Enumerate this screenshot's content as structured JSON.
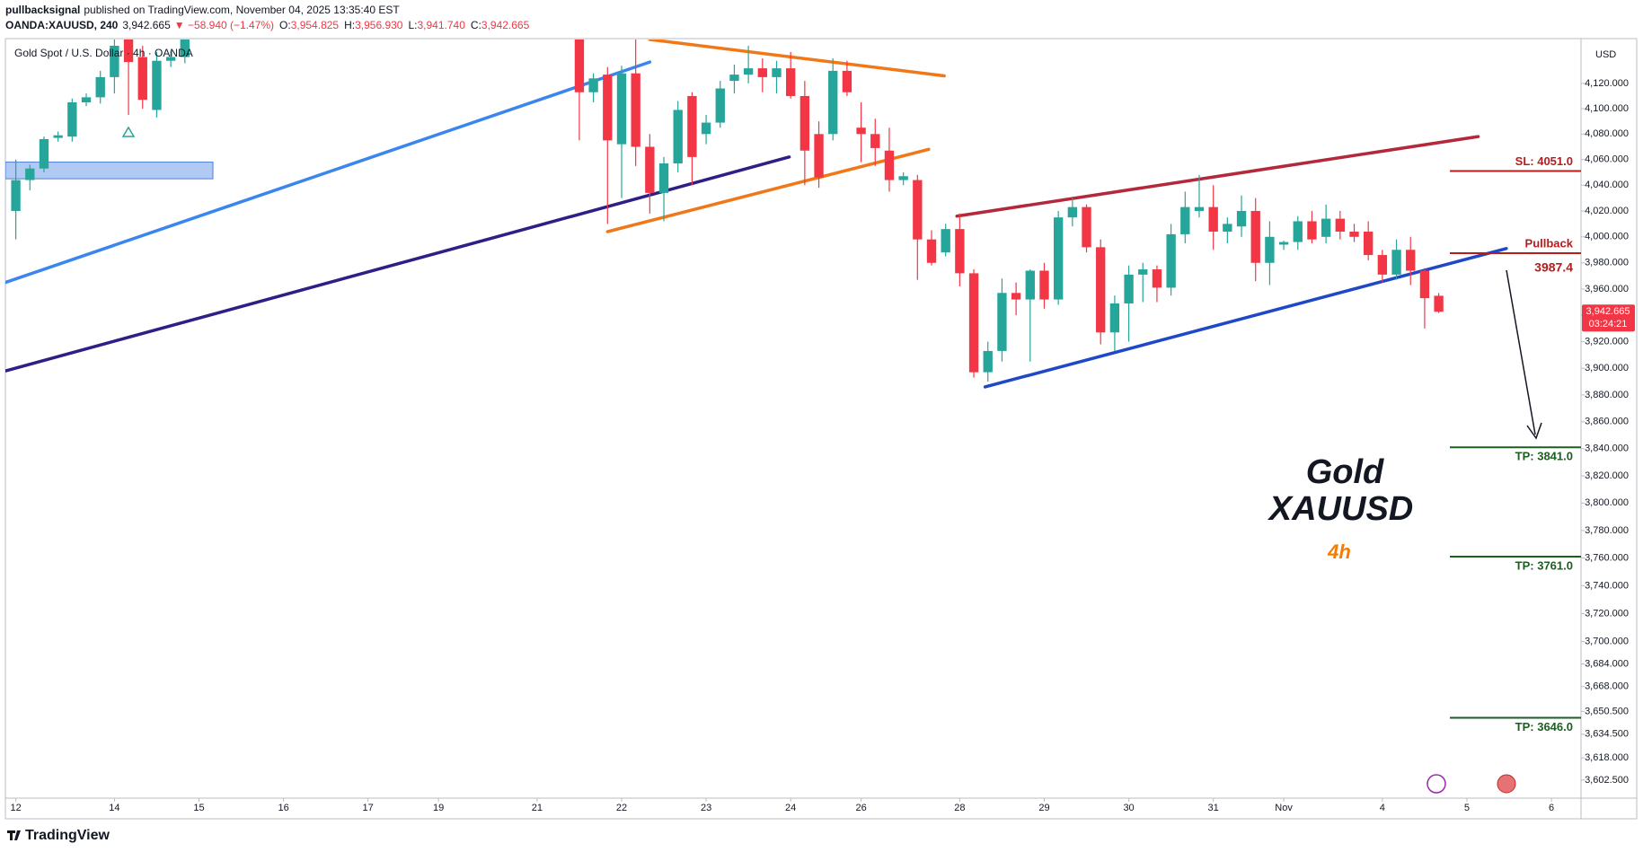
{
  "header": {
    "author": "pullbacksignal",
    "published": "published on TradingView.com, November 04, 2025 13:35:40 EST",
    "symbol": "OANDA:XAUUSD, 240",
    "price": "3,942.665",
    "change": "▼ −58.940 (−1.47%)",
    "ohlc": [
      {
        "key": "O:",
        "value": "3,954.825"
      },
      {
        "key": "H:",
        "value": "3,956.930"
      },
      {
        "key": "L:",
        "value": "3,941.740"
      },
      {
        "key": "C:",
        "value": "3,942.665"
      }
    ]
  },
  "chart_data": {
    "type": "candlestick",
    "legend": "Gold Spot / U.S. Dollar · 4h · OANDA",
    "currency": "USD",
    "log_scale": true,
    "grid": false,
    "up_color": "#26a69a",
    "down_color": "#f23645",
    "x": [
      0,
      1,
      2,
      3,
      4,
      5,
      6,
      7,
      8,
      9,
      10,
      11,
      12,
      40,
      41,
      42,
      43,
      44,
      45,
      46,
      47,
      48,
      49,
      50,
      51,
      52,
      53,
      54,
      55,
      56,
      57,
      58,
      59,
      60,
      61,
      62,
      63,
      64,
      65,
      66,
      67,
      68,
      69,
      70,
      71,
      72,
      73,
      74,
      75,
      76,
      77,
      78,
      79,
      80,
      81,
      82,
      83,
      84,
      85,
      86,
      87,
      88,
      89,
      90,
      91,
      92,
      93,
      94,
      95,
      96,
      97,
      98,
      99,
      100,
      101
    ],
    "open": [
      4020,
      4044,
      4053,
      4077,
      4078,
      4105,
      4109,
      4125,
      4170,
      4141,
      4099,
      4138,
      4141,
      4170,
      4113,
      4127,
      4072,
      4128,
      4070,
      4034,
      4057,
      4110,
      4080,
      4089,
      4122,
      4127,
      4132,
      4125,
      4132,
      4110,
      4080,
      4080,
      4130,
      4085,
      4080,
      4067,
      4044,
      4044,
      3998,
      3988,
      4006,
      3972,
      3897,
      3913,
      3957,
      3952,
      3974,
      3952,
      4015,
      4023,
      3992,
      3927,
      3949,
      3971,
      3975,
      3961,
      4002,
      4020,
      4023,
      4004,
      4008,
      4020,
      3980,
      3994,
      3996,
      4012,
      4000,
      4014,
      4004,
      4004,
      3986,
      3971,
      3990,
      3974,
      3954.825
    ],
    "high": [
      4060,
      4056,
      4078,
      4082,
      4108,
      4112,
      4130,
      4160,
      4180,
      4150,
      4145,
      4146,
      4165,
      4180,
      4128,
      4133,
      4134,
      4160,
      4080,
      4062,
      4106,
      4113,
      4095,
      4122,
      4135,
      4150,
      4140,
      4138,
      4145,
      4122,
      4090,
      4140,
      4138,
      4105,
      4092,
      4085,
      4050,
      4048,
      4005,
      4010,
      4018,
      3975,
      3920,
      3968,
      3965,
      3975,
      3980,
      4020,
      4030,
      4025,
      3998,
      3955,
      3978,
      3980,
      3978,
      4010,
      4035,
      4048,
      4040,
      4015,
      4032,
      4030,
      4012,
      3997,
      4016,
      4020,
      4025,
      4020,
      4010,
      4012,
      3990,
      3998,
      4000,
      3976,
      3956.93
    ],
    "low": [
      3998,
      4036,
      4050,
      4074,
      4074,
      4102,
      4104,
      4112,
      4095,
      4100,
      4093,
      4133,
      4136,
      4075,
      4105,
      4010,
      4030,
      4055,
      4018,
      4012,
      4050,
      4040,
      4072,
      4085,
      4112,
      4120,
      4113,
      4112,
      4108,
      4040,
      4038,
      4075,
      4110,
      4058,
      4055,
      4035,
      4040,
      3967,
      3978,
      3985,
      3962,
      3893,
      3890,
      3905,
      3940,
      3905,
      3945,
      3948,
      4008,
      3988,
      3918,
      3913,
      3920,
      3950,
      3950,
      3955,
      3995,
      4015,
      3990,
      3995,
      4000,
      3966,
      3963,
      3990,
      3990,
      3995,
      3995,
      3998,
      3996,
      3982,
      3965,
      3967,
      3963,
      3930,
      3941.74
    ],
    "close": [
      4044,
      4053,
      4076,
      4079,
      4105,
      4109,
      4125,
      4150,
      4137,
      4107,
      4138,
      4141,
      4158,
      4113,
      4124,
      4075,
      4128,
      4070,
      4034,
      4057,
      4099,
      4062,
      4089,
      4116,
      4127,
      4132,
      4125,
      4132,
      4110,
      4067,
      4046,
      4130,
      4113,
      4080,
      4069,
      4044,
      4047,
      3998,
      3980,
      4006,
      3972,
      3897,
      3913,
      3957,
      3952,
      3974,
      3952,
      4015,
      4023,
      3992,
      3927,
      3949,
      3971,
      3975,
      3961,
      4002,
      4023,
      4023,
      4004,
      4010,
      4020,
      3980,
      4000,
      3996,
      4012,
      3998,
      4014,
      4004,
      4000,
      3986,
      3971,
      3990,
      3974,
      3953,
      3942.665
    ],
    "last_label": "3,942.665",
    "countdown": "03:24:21",
    "xlim": [
      -0.74,
      111.1
    ],
    "xticks": [
      {
        "value": 0,
        "label": "12"
      },
      {
        "value": 7,
        "label": "14"
      },
      {
        "value": 13,
        "label": "15"
      },
      {
        "value": 19,
        "label": "16"
      },
      {
        "value": 25,
        "label": "17"
      },
      {
        "value": 30,
        "label": "19"
      },
      {
        "value": 37,
        "label": "21"
      },
      {
        "value": 43,
        "label": "22"
      },
      {
        "value": 49,
        "label": "23"
      },
      {
        "value": 55,
        "label": "24"
      },
      {
        "value": 60,
        "label": "26"
      },
      {
        "value": 67,
        "label": "28"
      },
      {
        "value": 73,
        "label": "29"
      },
      {
        "value": 79,
        "label": "30"
      },
      {
        "value": 85,
        "label": "31"
      },
      {
        "value": 90,
        "label": "Nov"
      },
      {
        "value": 97,
        "label": "4"
      },
      {
        "value": 103,
        "label": "5"
      },
      {
        "value": 109,
        "label": "6"
      }
    ],
    "ylim": [
      3590,
      4155
    ],
    "yticks": [
      {
        "value": 4120,
        "label": "4,120.000"
      },
      {
        "value": 4100,
        "label": "4,100.000"
      },
      {
        "value": 4080,
        "label": "4,080.000"
      },
      {
        "value": 4060,
        "label": "4,060.000"
      },
      {
        "value": 4040,
        "label": "4,040.000"
      },
      {
        "value": 4020,
        "label": "4,020.000"
      },
      {
        "value": 4000,
        "label": "4,000.000"
      },
      {
        "value": 3980,
        "label": "3,980.000"
      },
      {
        "value": 3960,
        "label": "3,960.000"
      },
      {
        "value": 3940,
        "label": "3,940.000"
      },
      {
        "value": 3920,
        "label": "3,920.000"
      },
      {
        "value": 3900,
        "label": "3,900.000"
      },
      {
        "value": 3880,
        "label": "3,880.000"
      },
      {
        "value": 3860,
        "label": "3,860.000"
      },
      {
        "value": 3840,
        "label": "3,840.000"
      },
      {
        "value": 3820,
        "label": "3,820.000"
      },
      {
        "value": 3800,
        "label": "3,800.000"
      },
      {
        "value": 3780,
        "label": "3,780.000"
      },
      {
        "value": 3760,
        "label": "3,760.000"
      },
      {
        "value": 3740,
        "label": "3,740.000"
      },
      {
        "value": 3720,
        "label": "3,720.000"
      },
      {
        "value": 3700,
        "label": "3,700.000"
      },
      {
        "value": 3684,
        "label": "3,684.000"
      },
      {
        "value": 3668,
        "label": "3,668.000"
      },
      {
        "value": 3650.5,
        "label": "3,650.500"
      },
      {
        "value": 3634.5,
        "label": "3,634.500"
      },
      {
        "value": 3618,
        "label": "3,618.000"
      },
      {
        "value": 3602.5,
        "label": "3,602.500"
      }
    ],
    "zones": [
      {
        "from": 4045,
        "to": 4058,
        "color": "#90b4ee"
      }
    ],
    "trendlines": [
      {
        "color": "#3b86ee",
        "x": [
          -0.74,
          45
        ],
        "y": [
          3965,
          4137
        ]
      },
      {
        "color": "#2e1f86",
        "x": [
          -0.74,
          54.9
        ],
        "y": [
          3898,
          4062
        ]
      },
      {
        "color": "#f07818",
        "x": [
          45,
          65.9
        ],
        "y": [
          4155,
          4126
        ]
      },
      {
        "color": "#f07818",
        "x": [
          42,
          64.8
        ],
        "y": [
          4004,
          4068
        ]
      },
      {
        "color": "#b3283a",
        "x": [
          66.8,
          103.8
        ],
        "y": [
          4016,
          4078
        ]
      },
      {
        "color": "#1f48c8",
        "x": [
          68.8,
          105.8
        ],
        "y": [
          3886,
          3991
        ]
      }
    ],
    "levels": [
      {
        "label": "SL: 4051.0",
        "value": 4051,
        "color": "#b71c1c",
        "side": "above"
      },
      {
        "label": "Pullback",
        "value": 3987.4,
        "value_label": "3987.4",
        "color": "#b71c1c",
        "side": "above"
      },
      {
        "label": "TP: 3841.0",
        "value": 3841,
        "color": "#1b5e20",
        "side": "below"
      },
      {
        "label": "TP: 3761.0",
        "value": 3761,
        "color": "#1b5e20",
        "side": "below"
      },
      {
        "label": "TP: 3646.0",
        "value": 3646,
        "color": "#1b5e20",
        "side": "below"
      }
    ],
    "caption": {
      "line1": "Gold",
      "line2": "XAUUSD",
      "timeframe": "4h"
    }
  },
  "footer": {
    "logo": "TradingView"
  }
}
